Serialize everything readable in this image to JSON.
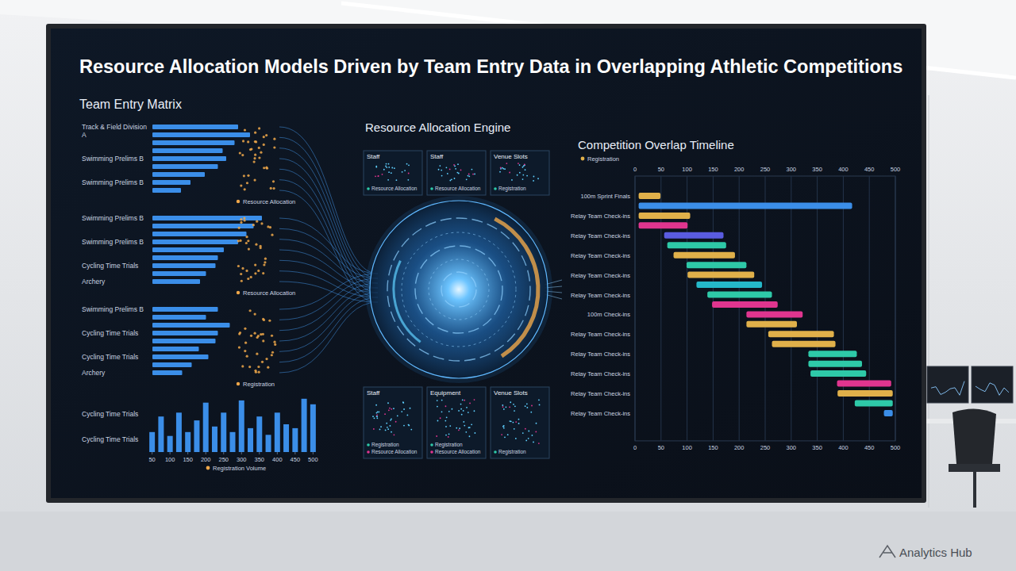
{
  "header": {
    "title": "Resource Allocation Models Driven by Team Entry Data in Overlapping Athletic Competitions"
  },
  "chart_data": [
    {
      "type": "bar",
      "orientation": "horizontal",
      "title": "Team Entry Matrix",
      "xlim": [
        0,
        100
      ],
      "tick_labels": false,
      "color": "#3b8ee8",
      "groups": [
        {
          "categories": [
            "Track & Field Division A",
            null,
            null,
            null,
            "Swimming Prelims B",
            null,
            null,
            "Swimming Prelims B",
            null
          ],
          "values": [
            72,
            82,
            69,
            59,
            62,
            55,
            44,
            32,
            24
          ],
          "caption": "Resource Allocation"
        },
        {
          "categories": [
            "Swimming Prelims B",
            null,
            null,
            "Swimming Prelims B",
            null,
            null,
            "Cycling Time Trials",
            null,
            "Archery"
          ],
          "values": [
            92,
            85,
            79,
            72,
            60,
            55,
            53,
            45,
            40
          ],
          "caption": "Resource Allocation"
        },
        {
          "categories": [
            "Swimming Prelims B",
            null,
            null,
            "Cycling Time Trials",
            null,
            null,
            "Cycling Time Trials",
            null,
            "Archery"
          ],
          "values": [
            55,
            45,
            65,
            55,
            53,
            39,
            47,
            33,
            25
          ],
          "caption": "Registration"
        }
      ]
    },
    {
      "type": "bar",
      "x": [
        50,
        75,
        100,
        125,
        150,
        175,
        200,
        225,
        250,
        275,
        300,
        325,
        350,
        375,
        400,
        425,
        450,
        475,
        500
      ],
      "series": [
        {
          "name": "Registration Volume",
          "color": "#3b8ee8",
          "values": [
            36,
            64,
            29,
            71,
            36,
            57,
            89,
            46,
            71,
            36,
            93,
            43,
            64,
            31,
            71,
            50,
            43,
            96,
            86
          ]
        }
      ],
      "xlim": [
        37.5,
        512.5
      ],
      "xticks": [
        50,
        100,
        150,
        200,
        250,
        300,
        350,
        400,
        450,
        500
      ],
      "ylim": [
        0,
        100
      ],
      "tick_labels": "x",
      "legend": "bottom",
      "annotations": [
        "Cycling Time Trials",
        "Cycling Time Trials"
      ]
    },
    {
      "type": "gantt",
      "orientation": "horizontal",
      "title": "Competition Overlap Timeline",
      "categories": [
        "100m Sprint Finals",
        null,
        "Relay Team Check-ins",
        null,
        "Relay Team Check-ins",
        null,
        "Relay Team Check-ins",
        null,
        "Relay Team Check-ins",
        null,
        "Relay Team Check-ins",
        null,
        "100m Check-ins",
        null,
        "Relay Team Check-ins",
        null,
        "Relay Team Check-ins",
        null,
        "Relay Team Check-ins",
        null,
        "Relay Team Check-ins",
        null,
        "Relay Team Check-ins"
      ],
      "start": [
        7,
        7,
        7,
        7,
        56,
        62,
        74,
        99,
        101,
        118,
        139,
        148,
        214,
        214,
        256,
        263,
        333,
        333,
        337,
        388,
        389,
        422,
        478
      ],
      "end": [
        49,
        417,
        106,
        101,
        170,
        175,
        192,
        214,
        229,
        244,
        263,
        274,
        322,
        311,
        382,
        385,
        426,
        436,
        444,
        492,
        495,
        495,
        495
      ],
      "colors": [
        "#e0b04a",
        "#3b8ee8",
        "#e0b04a",
        "#e0358f",
        "#5a5ce0",
        "#2ec9a8",
        "#e0b04a",
        "#2ec9a8",
        "#e0b04a",
        "#25b8c9",
        "#2ec9a8",
        "#e0358f",
        "#e0358f",
        "#e0b04a",
        "#e0b04a",
        "#e0b04a",
        "#2ec9a8",
        "#2ec9a8",
        "#2ec9a8",
        "#e0358f",
        "#e0b04a",
        "#2ec9a8",
        "#3b8ee8"
      ],
      "xlim": [
        0,
        500
      ],
      "xticks": [
        0,
        50,
        100,
        150,
        200,
        250,
        300,
        350,
        400,
        450,
        500
      ],
      "grid": true,
      "legend": "top-left",
      "legend_entries": [
        {
          "name": "Registration",
          "color": "#e0b04a"
        }
      ]
    }
  ],
  "engine": {
    "title": "Resource Allocation Engine",
    "panels": [
      {
        "title": "Staff",
        "items": [
          "Resource Allocation"
        ]
      },
      {
        "title": "Staff",
        "items": [
          "Resource Allocation"
        ]
      },
      {
        "title": "Venue Slots",
        "items": [
          "Registration"
        ]
      },
      {
        "title": "Staff",
        "items": [
          "Registration",
          "Resource Allocation"
        ]
      },
      {
        "title": "Equipment",
        "items": [
          "Registration",
          "Resource Allocation"
        ]
      },
      {
        "title": "Venue Slots",
        "items": [
          "Registration"
        ]
      }
    ]
  },
  "footer": {
    "brand": "Analytics Hub"
  }
}
